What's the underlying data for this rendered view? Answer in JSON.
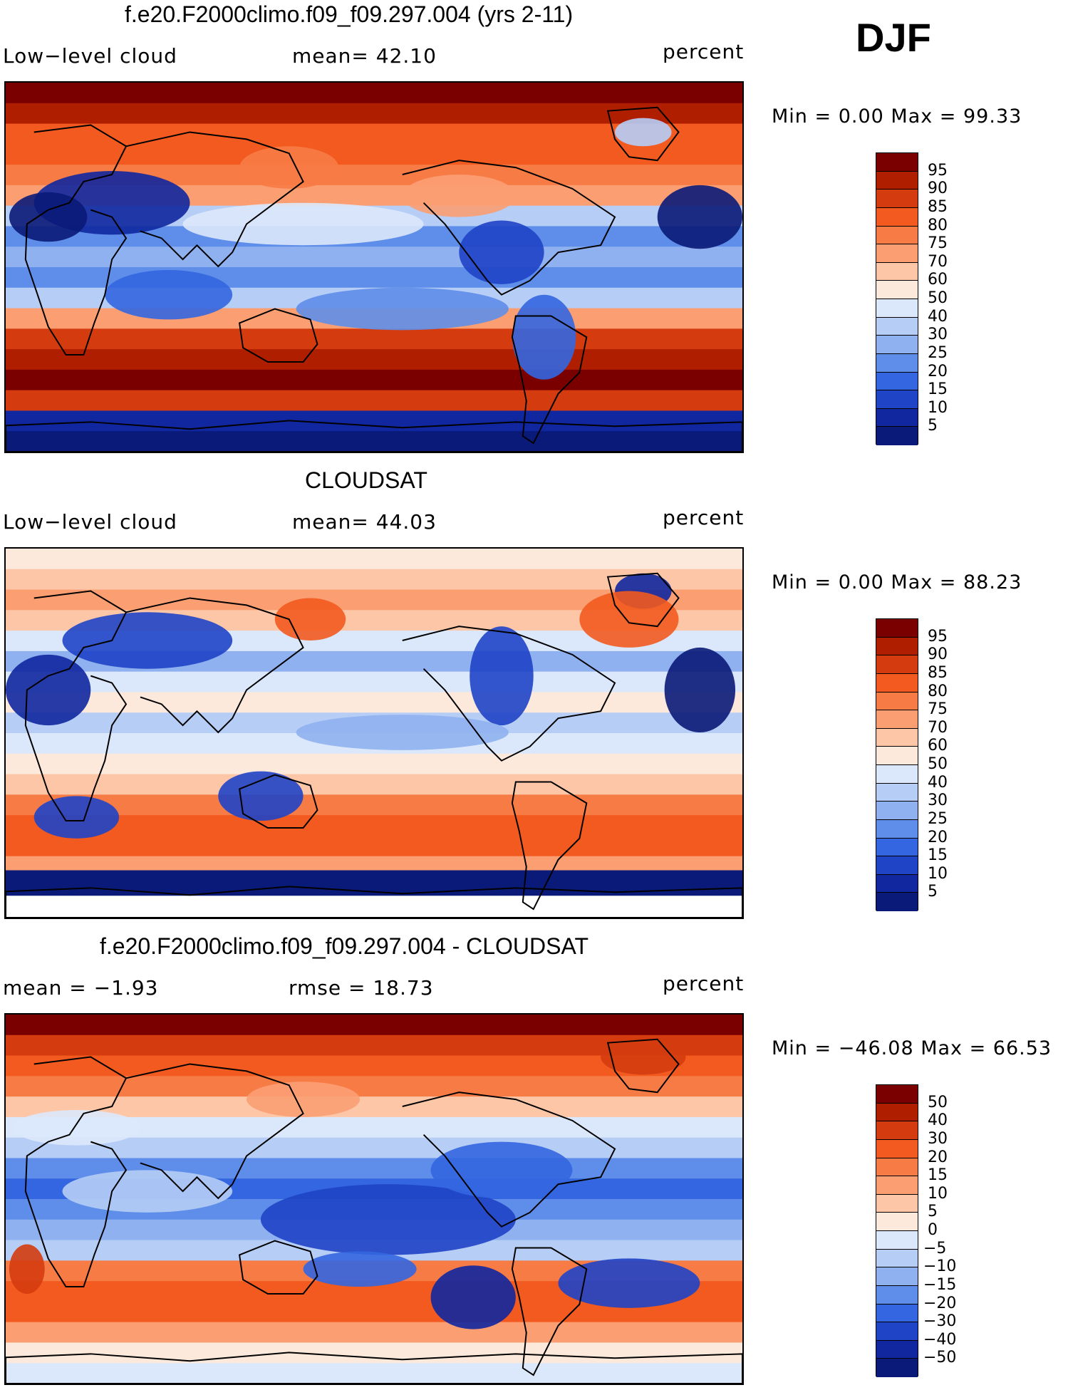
{
  "season": "DJF",
  "units": "percent",
  "panels": [
    {
      "title": "f.e20.F2000climo.f09_f09.297.004 (yrs 2-11)",
      "left_label": "Low−level cloud",
      "mid_label": "mean=   42.10",
      "right_label": "percent",
      "minmax": "Min =     0.00 Max =    99.33",
      "kind": "model",
      "colorbar": {
        "labels": [
          "95",
          "90",
          "85",
          "80",
          "75",
          "70",
          "60",
          "50",
          "40",
          "30",
          "25",
          "20",
          "15",
          "10",
          "5"
        ],
        "colors": [
          "#7a0000",
          "#b01e00",
          "#d43c10",
          "#f25a1f",
          "#f77b45",
          "#fb9f73",
          "#fdc6a7",
          "#fde9dc",
          "#dbe8fb",
          "#b6cdf6",
          "#8fb1f0",
          "#5e8ee9",
          "#3366e0",
          "#1f44c6",
          "#10279f",
          "#0a1a78"
        ]
      }
    },
    {
      "title": "CLOUDSAT",
      "left_label": "Low−level cloud",
      "mid_label": "mean=   44.03",
      "right_label": "percent",
      "minmax": "Min =     0.00 Max =    88.23",
      "kind": "obs",
      "colorbar": {
        "labels": [
          "95",
          "90",
          "85",
          "80",
          "75",
          "70",
          "60",
          "50",
          "40",
          "30",
          "25",
          "20",
          "15",
          "10",
          "5"
        ],
        "colors": [
          "#7a0000",
          "#b01e00",
          "#d43c10",
          "#f25a1f",
          "#f77b45",
          "#fb9f73",
          "#fdc6a7",
          "#fde9dc",
          "#dbe8fb",
          "#b6cdf6",
          "#8fb1f0",
          "#5e8ee9",
          "#3366e0",
          "#1f44c6",
          "#10279f",
          "#0a1a78"
        ]
      }
    },
    {
      "title": "f.e20.F2000climo.f09_f09.297.004 - CLOUDSAT",
      "left_label": "mean =   −1.93",
      "mid_label": "rmse =    18.73",
      "right_label": "percent",
      "minmax": "Min = −46.08 Max =    66.53",
      "kind": "diff",
      "colorbar": {
        "labels": [
          "50",
          "40",
          "30",
          "20",
          "15",
          "10",
          "5",
          "0",
          "−5",
          "−10",
          "−15",
          "−20",
          "−30",
          "−40",
          "−50"
        ],
        "colors": [
          "#7a0000",
          "#b01e00",
          "#d43c10",
          "#f25a1f",
          "#f77b45",
          "#fb9f73",
          "#fdc6a7",
          "#fde9dc",
          "#dbe8fb",
          "#b6cdf6",
          "#8fb1f0",
          "#5e8ee9",
          "#3366e0",
          "#1f44c6",
          "#10279f",
          "#0a1a78"
        ]
      }
    }
  ]
}
